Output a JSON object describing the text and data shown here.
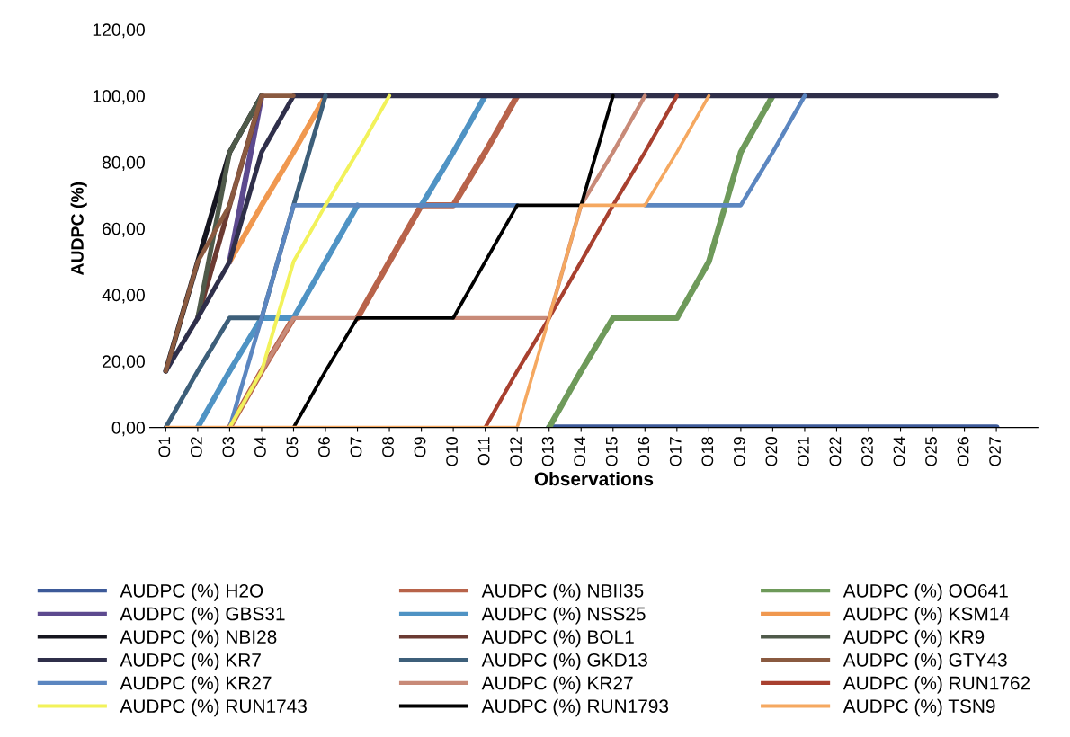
{
  "chart_data": {
    "type": "line",
    "xlabel": "Observations",
    "ylabel": "AUDPC (%)",
    "categories": [
      "O1",
      "O2",
      "O3",
      "O4",
      "O5",
      "O6",
      "O7",
      "O8",
      "O9",
      "O10",
      "O11",
      "O12",
      "O13",
      "O14",
      "O15",
      "O16",
      "O17",
      "O18",
      "O19",
      "O20",
      "O21",
      "O22",
      "O23",
      "O24",
      "O25",
      "O26",
      "O27"
    ],
    "ylim": [
      0,
      120
    ],
    "yticks": [
      {
        "value": 0,
        "label": "0,00"
      },
      {
        "value": 20,
        "label": "20,00"
      },
      {
        "value": 40,
        "label": "40,00"
      },
      {
        "value": 60,
        "label": "60,00"
      },
      {
        "value": 80,
        "label": "80,00"
      },
      {
        "value": 100,
        "label": "100,00"
      },
      {
        "value": 120,
        "label": "120,00"
      }
    ],
    "grid": false,
    "legend": "bottom",
    "marker": "none",
    "line_style": "solid",
    "series": [
      {
        "name": "AUDPC (%) H2O",
        "color": "#3d5a99",
        "values": [
          null,
          null,
          null,
          null,
          null,
          null,
          null,
          null,
          null,
          null,
          null,
          null,
          0,
          0,
          0,
          0,
          0,
          0,
          0,
          0,
          0,
          0,
          0,
          0,
          0,
          0,
          0
        ]
      },
      {
        "name": "AUDPC (%) NBII35",
        "color": "#b8634a",
        "values": [
          null,
          null,
          0,
          17,
          33,
          null,
          33,
          50,
          67,
          67,
          83,
          100,
          null,
          null,
          null,
          null,
          null,
          null,
          null,
          null,
          null,
          null,
          null,
          null,
          null,
          null,
          null
        ]
      },
      {
        "name": "AUDPC (%) OO641",
        "color": "#6e9a5a",
        "values": [
          null,
          null,
          null,
          null,
          null,
          null,
          null,
          null,
          null,
          null,
          null,
          null,
          0,
          17,
          33,
          33,
          33,
          50,
          83,
          100,
          null,
          null,
          null,
          null,
          null,
          null,
          null
        ]
      },
      {
        "name": "AUDPC (%) GBS31",
        "color": "#5d4a8f",
        "values": [
          null,
          null,
          50,
          100,
          null,
          null,
          null,
          null,
          null,
          null,
          null,
          null,
          null,
          null,
          null,
          null,
          null,
          null,
          null,
          null,
          null,
          null,
          null,
          null,
          null,
          null,
          null
        ]
      },
      {
        "name": "AUDPC (%) NSS25",
        "color": "#4f93c4",
        "values": [
          null,
          0,
          17,
          33,
          33,
          50,
          67,
          null,
          67,
          83,
          100,
          null,
          null,
          null,
          null,
          null,
          null,
          null,
          null,
          null,
          null,
          null,
          null,
          null,
          null,
          null,
          null
        ]
      },
      {
        "name": "AUDPC (%) KSM14",
        "color": "#f0984f",
        "values": [
          null,
          null,
          50,
          67,
          83,
          100,
          null,
          null,
          null,
          null,
          null,
          null,
          null,
          null,
          null,
          null,
          null,
          null,
          null,
          null,
          null,
          null,
          null,
          null,
          null,
          null,
          null
        ]
      },
      {
        "name": "AUDPC (%) NBI28",
        "color": "#15151f",
        "values": [
          17,
          50,
          83,
          100,
          null,
          null,
          null,
          null,
          null,
          null,
          null,
          null,
          null,
          null,
          null,
          null,
          null,
          null,
          null,
          null,
          null,
          null,
          null,
          null,
          null,
          null,
          null
        ]
      },
      {
        "name": "AUDPC (%) BOL1",
        "color": "#6b3a32",
        "values": [
          null,
          33,
          67,
          100,
          null,
          null,
          null,
          null,
          null,
          null,
          null,
          null,
          null,
          null,
          null,
          null,
          null,
          null,
          null,
          null,
          null,
          null,
          null,
          null,
          null,
          null,
          null
        ]
      },
      {
        "name": "AUDPC (%) KR9",
        "color": "#4f5a4a",
        "values": [
          null,
          33,
          83,
          100,
          null,
          null,
          null,
          null,
          null,
          null,
          null,
          null,
          null,
          null,
          null,
          null,
          null,
          null,
          null,
          null,
          null,
          null,
          null,
          null,
          null,
          null,
          null
        ]
      },
      {
        "name": "AUDPC (%) KR7",
        "color": "#2f2f4a",
        "values": [
          17,
          33,
          50,
          83,
          100,
          100,
          100,
          100,
          100,
          100,
          100,
          100,
          100,
          100,
          100,
          100,
          100,
          100,
          100,
          100,
          100,
          100,
          100,
          100,
          100,
          100,
          100
        ]
      },
      {
        "name": "AUDPC (%) GKD13",
        "color": "#3d5f7a",
        "values": [
          0,
          17,
          33,
          33,
          67,
          100,
          null,
          null,
          null,
          null,
          null,
          null,
          null,
          null,
          null,
          null,
          null,
          null,
          null,
          null,
          null,
          null,
          null,
          null,
          null,
          null,
          null
        ]
      },
      {
        "name": "AUDPC (%) GTY43",
        "color": "#8a5a40",
        "values": [
          17,
          50,
          67,
          100,
          100,
          null,
          null,
          null,
          null,
          null,
          null,
          null,
          null,
          null,
          null,
          null,
          null,
          null,
          null,
          null,
          null,
          null,
          null,
          null,
          null,
          null,
          null
        ]
      },
      {
        "name": "AUDPC (%) KR27",
        "color": "#5b86c0",
        "values": [
          null,
          null,
          0,
          33,
          67,
          67,
          67,
          67,
          67,
          67,
          67,
          67,
          null,
          null,
          null,
          67,
          67,
          67,
          67,
          83,
          100,
          null,
          null,
          null,
          null,
          null,
          null
        ]
      },
      {
        "name": "AUDPC (%) KR27",
        "color": "#c88a78",
        "values": [
          null,
          null,
          0,
          17,
          33,
          33,
          33,
          null,
          null,
          33,
          33,
          33,
          33,
          67,
          83,
          100,
          null,
          null,
          null,
          null,
          null,
          null,
          null,
          null,
          null,
          null,
          null
        ]
      },
      {
        "name": "AUDPC (%) RUN1762",
        "color": "#a8402f",
        "values": [
          null,
          null,
          null,
          null,
          null,
          null,
          null,
          null,
          null,
          null,
          0,
          17,
          33,
          50,
          67,
          83,
          100,
          null,
          null,
          null,
          null,
          null,
          null,
          null,
          null,
          null,
          null
        ]
      },
      {
        "name": "AUDPC (%) RUN1743",
        "color": "#f2f25a",
        "values": [
          null,
          null,
          0,
          17,
          50,
          67,
          83,
          100,
          null,
          null,
          null,
          null,
          null,
          null,
          null,
          null,
          null,
          null,
          null,
          null,
          null,
          null,
          null,
          null,
          null,
          null,
          null
        ]
      },
      {
        "name": "AUDPC (%) RUN1793",
        "color": "#000000",
        "values": [
          null,
          null,
          null,
          null,
          0,
          17,
          33,
          33,
          33,
          33,
          50,
          67,
          67,
          67,
          100,
          null,
          null,
          null,
          null,
          null,
          null,
          null,
          null,
          null,
          null,
          null,
          null
        ]
      },
      {
        "name": "AUDPC (%) TSN9",
        "color": "#f5a860",
        "values": [
          0,
          0,
          0,
          0,
          0,
          0,
          0,
          0,
          0,
          0,
          0,
          0,
          33,
          67,
          67,
          67,
          83,
          100,
          null,
          null,
          null,
          null,
          null,
          null,
          null,
          null,
          null
        ]
      }
    ]
  }
}
